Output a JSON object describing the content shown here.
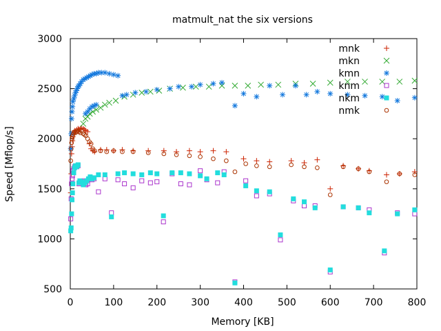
{
  "chart_data": {
    "type": "scatter",
    "title": "matmult_nat the six versions",
    "xlabel": "Memory [KB]",
    "ylabel": "Speed [Mflop/s]",
    "xlim": [
      0,
      800
    ],
    "ylim": [
      500,
      3000
    ],
    "xticks": [
      0,
      100,
      200,
      300,
      400,
      500,
      600,
      700,
      800
    ],
    "yticks": [
      500,
      1000,
      1500,
      2000,
      2500,
      3000
    ],
    "grid": false,
    "legend_position": "top-right",
    "series": [
      {
        "name": "mnk",
        "color": "#cc2200",
        "marker": "plus",
        "points": [
          [
            1,
            1460
          ],
          [
            2,
            1650
          ],
          [
            3,
            1850
          ],
          [
            4,
            1920
          ],
          [
            5,
            1980
          ],
          [
            6,
            2020
          ],
          [
            8,
            2060
          ],
          [
            10,
            2080
          ],
          [
            12,
            2070
          ],
          [
            15,
            2090
          ],
          [
            18,
            2100
          ],
          [
            20,
            2090
          ],
          [
            23,
            2100
          ],
          [
            26,
            2110
          ],
          [
            30,
            2100
          ],
          [
            33,
            2090
          ],
          [
            36,
            2080
          ],
          [
            40,
            2070
          ],
          [
            44,
            1950
          ],
          [
            48,
            1900
          ],
          [
            52,
            1880
          ],
          [
            56,
            1870
          ],
          [
            70,
            1890
          ],
          [
            84,
            1890
          ],
          [
            100,
            1880
          ],
          [
            120,
            1890
          ],
          [
            145,
            1880
          ],
          [
            180,
            1880
          ],
          [
            216,
            1880
          ],
          [
            245,
            1870
          ],
          [
            275,
            1880
          ],
          [
            300,
            1870
          ],
          [
            330,
            1880
          ],
          [
            360,
            1870
          ],
          [
            400,
            1800
          ],
          [
            430,
            1780
          ],
          [
            460,
            1770
          ],
          [
            510,
            1780
          ],
          [
            540,
            1760
          ],
          [
            570,
            1790
          ],
          [
            600,
            1500
          ],
          [
            630,
            1730
          ],
          [
            665,
            1700
          ],
          [
            690,
            1680
          ],
          [
            730,
            1640
          ],
          [
            760,
            1650
          ],
          [
            795,
            1670
          ]
        ]
      },
      {
        "name": "mkn",
        "color": "#33aa33",
        "marker": "x",
        "points": [
          [
            30,
            2150
          ],
          [
            35,
            2200
          ],
          [
            40,
            2220
          ],
          [
            45,
            2250
          ],
          [
            52,
            2270
          ],
          [
            60,
            2290
          ],
          [
            70,
            2310
          ],
          [
            80,
            2340
          ],
          [
            90,
            2360
          ],
          [
            105,
            2380
          ],
          [
            125,
            2420
          ],
          [
            145,
            2440
          ],
          [
            165,
            2460
          ],
          [
            185,
            2470
          ],
          [
            205,
            2480
          ],
          [
            230,
            2500
          ],
          [
            260,
            2510
          ],
          [
            290,
            2520
          ],
          [
            320,
            2520
          ],
          [
            350,
            2530
          ],
          [
            380,
            2530
          ],
          [
            410,
            2530
          ],
          [
            440,
            2540
          ],
          [
            480,
            2540
          ],
          [
            520,
            2550
          ],
          [
            560,
            2550
          ],
          [
            600,
            2560
          ],
          [
            640,
            2570
          ],
          [
            680,
            2570
          ],
          [
            720,
            2570
          ],
          [
            760,
            2570
          ],
          [
            795,
            2580
          ]
        ]
      },
      {
        "name": "kmn",
        "color": "#1177dd",
        "marker": "star",
        "points": [
          [
            1,
            1900
          ],
          [
            2,
            2050
          ],
          [
            3,
            2200
          ],
          [
            4,
            2270
          ],
          [
            5,
            2320
          ],
          [
            6,
            2370
          ],
          [
            8,
            2400
          ],
          [
            10,
            2430
          ],
          [
            12,
            2460
          ],
          [
            14,
            2480
          ],
          [
            16,
            2500
          ],
          [
            18,
            2520
          ],
          [
            20,
            2530
          ],
          [
            23,
            2550
          ],
          [
            26,
            2570
          ],
          [
            30,
            2590
          ],
          [
            34,
            2600
          ],
          [
            38,
            2610
          ],
          [
            42,
            2620
          ],
          [
            46,
            2630
          ],
          [
            50,
            2640
          ],
          [
            55,
            2650
          ],
          [
            60,
            2650
          ],
          [
            65,
            2660
          ],
          [
            72,
            2660
          ],
          [
            80,
            2660
          ],
          [
            90,
            2650
          ],
          [
            100,
            2640
          ],
          [
            110,
            2630
          ],
          [
            35,
            2250
          ],
          [
            40,
            2270
          ],
          [
            45,
            2300
          ],
          [
            50,
            2320
          ],
          [
            55,
            2330
          ],
          [
            60,
            2340
          ],
          [
            120,
            2430
          ],
          [
            130,
            2440
          ],
          [
            150,
            2460
          ],
          [
            175,
            2470
          ],
          [
            200,
            2490
          ],
          [
            230,
            2500
          ],
          [
            250,
            2520
          ],
          [
            280,
            2520
          ],
          [
            300,
            2540
          ],
          [
            330,
            2550
          ],
          [
            350,
            2560
          ],
          [
            380,
            2330
          ],
          [
            400,
            2450
          ],
          [
            430,
            2420
          ],
          [
            460,
            2530
          ],
          [
            490,
            2440
          ],
          [
            520,
            2530
          ],
          [
            545,
            2440
          ],
          [
            570,
            2470
          ],
          [
            600,
            2450
          ],
          [
            640,
            2440
          ],
          [
            680,
            2430
          ],
          [
            720,
            2420
          ],
          [
            755,
            2380
          ],
          [
            795,
            2410
          ]
        ]
      },
      {
        "name": "knm",
        "color": "#aa33cc",
        "marker": "square-open",
        "points": [
          [
            1,
            1200
          ],
          [
            2,
            1400
          ],
          [
            3,
            1550
          ],
          [
            4,
            1600
          ],
          [
            5,
            1630
          ],
          [
            6,
            1680
          ],
          [
            8,
            1700
          ],
          [
            10,
            1720
          ],
          [
            12,
            1730
          ],
          [
            15,
            1720
          ],
          [
            18,
            1730
          ],
          [
            20,
            1550
          ],
          [
            24,
            1560
          ],
          [
            28,
            1570
          ],
          [
            32,
            1580
          ],
          [
            36,
            1540
          ],
          [
            40,
            1550
          ],
          [
            45,
            1600
          ],
          [
            50,
            1590
          ],
          [
            55,
            1600
          ],
          [
            65,
            1470
          ],
          [
            80,
            1600
          ],
          [
            95,
            1260
          ],
          [
            110,
            1590
          ],
          [
            125,
            1550
          ],
          [
            145,
            1510
          ],
          [
            165,
            1580
          ],
          [
            185,
            1560
          ],
          [
            200,
            1570
          ],
          [
            215,
            1170
          ],
          [
            235,
            1650
          ],
          [
            255,
            1550
          ],
          [
            275,
            1540
          ],
          [
            300,
            1680
          ],
          [
            315,
            1590
          ],
          [
            340,
            1560
          ],
          [
            355,
            1670
          ],
          [
            380,
            570
          ],
          [
            405,
            1580
          ],
          [
            430,
            1430
          ],
          [
            460,
            1450
          ],
          [
            485,
            990
          ],
          [
            515,
            1380
          ],
          [
            540,
            1330
          ],
          [
            565,
            1330
          ],
          [
            600,
            670
          ],
          [
            630,
            1320
          ],
          [
            665,
            1310
          ],
          [
            690,
            1290
          ],
          [
            725,
            860
          ],
          [
            755,
            1260
          ],
          [
            795,
            1250
          ]
        ]
      },
      {
        "name": "nkm",
        "color": "#22dddd",
        "marker": "square-filled",
        "points": [
          [
            1,
            1080
          ],
          [
            2,
            1110
          ],
          [
            3,
            1250
          ],
          [
            4,
            1390
          ],
          [
            5,
            1460
          ],
          [
            6,
            1550
          ],
          [
            8,
            1660
          ],
          [
            10,
            1710
          ],
          [
            12,
            1730
          ],
          [
            14,
            1720
          ],
          [
            16,
            1730
          ],
          [
            18,
            1740
          ],
          [
            20,
            1560
          ],
          [
            22,
            1580
          ],
          [
            26,
            1570
          ],
          [
            30,
            1540
          ],
          [
            34,
            1560
          ],
          [
            38,
            1580
          ],
          [
            42,
            1600
          ],
          [
            46,
            1620
          ],
          [
            50,
            1600
          ],
          [
            55,
            1610
          ],
          [
            65,
            1640
          ],
          [
            80,
            1640
          ],
          [
            95,
            1220
          ],
          [
            110,
            1650
          ],
          [
            125,
            1660
          ],
          [
            145,
            1650
          ],
          [
            165,
            1640
          ],
          [
            185,
            1660
          ],
          [
            200,
            1650
          ],
          [
            215,
            1230
          ],
          [
            235,
            1660
          ],
          [
            255,
            1660
          ],
          [
            275,
            1650
          ],
          [
            300,
            1630
          ],
          [
            315,
            1600
          ],
          [
            340,
            1660
          ],
          [
            355,
            1640
          ],
          [
            380,
            560
          ],
          [
            405,
            1530
          ],
          [
            430,
            1480
          ],
          [
            460,
            1470
          ],
          [
            485,
            1040
          ],
          [
            515,
            1400
          ],
          [
            540,
            1370
          ],
          [
            565,
            1310
          ],
          [
            600,
            690
          ],
          [
            630,
            1320
          ],
          [
            665,
            1310
          ],
          [
            690,
            1260
          ],
          [
            725,
            880
          ],
          [
            755,
            1250
          ],
          [
            795,
            1290
          ]
        ]
      },
      {
        "name": "nmk",
        "color": "#aa3300",
        "marker": "circle-open",
        "points": [
          [
            1,
            1780
          ],
          [
            2,
            1900
          ],
          [
            3,
            1960
          ],
          [
            4,
            2000
          ],
          [
            5,
            2020
          ],
          [
            6,
            2040
          ],
          [
            8,
            2060
          ],
          [
            10,
            2070
          ],
          [
            12,
            2060
          ],
          [
            15,
            2070
          ],
          [
            18,
            2080
          ],
          [
            20,
            2070
          ],
          [
            23,
            2060
          ],
          [
            26,
            2080
          ],
          [
            30,
            2050
          ],
          [
            33,
            2040
          ],
          [
            36,
            2030
          ],
          [
            40,
            2000
          ],
          [
            44,
            1970
          ],
          [
            48,
            1950
          ],
          [
            52,
            1900
          ],
          [
            56,
            1880
          ],
          [
            70,
            1880
          ],
          [
            84,
            1870
          ],
          [
            100,
            1880
          ],
          [
            120,
            1870
          ],
          [
            145,
            1870
          ],
          [
            180,
            1860
          ],
          [
            216,
            1850
          ],
          [
            245,
            1840
          ],
          [
            275,
            1830
          ],
          [
            300,
            1820
          ],
          [
            330,
            1800
          ],
          [
            360,
            1780
          ],
          [
            380,
            1670
          ],
          [
            405,
            1750
          ],
          [
            430,
            1730
          ],
          [
            460,
            1720
          ],
          [
            510,
            1740
          ],
          [
            540,
            1720
          ],
          [
            570,
            1710
          ],
          [
            600,
            1440
          ],
          [
            630,
            1720
          ],
          [
            665,
            1700
          ],
          [
            690,
            1670
          ],
          [
            730,
            1570
          ],
          [
            760,
            1650
          ],
          [
            795,
            1640
          ]
        ]
      }
    ]
  }
}
